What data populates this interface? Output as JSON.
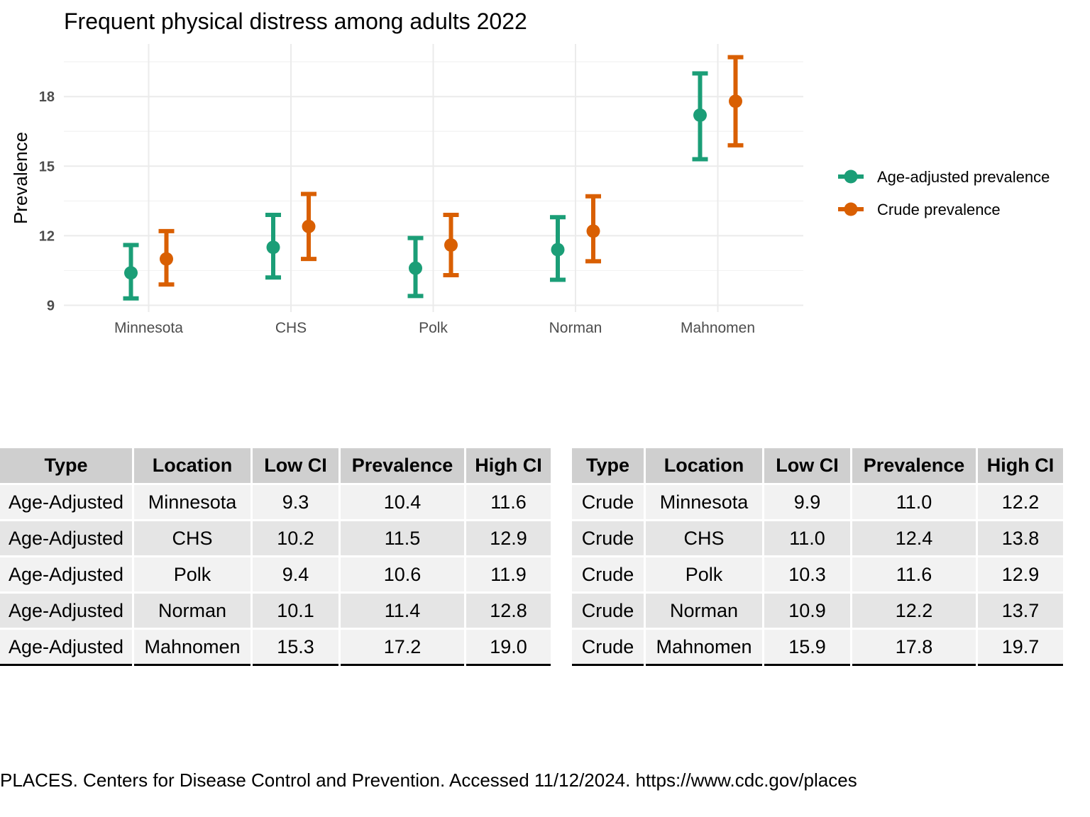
{
  "chart_data": {
    "type": "errorbar",
    "title": "Frequent physical distress among adults 2022",
    "xlabel": "",
    "ylabel": "Prevalence",
    "categories": [
      "Minnesota",
      "CHS",
      "Polk",
      "Norman",
      "Mahnomen"
    ],
    "yticks": [
      9,
      12,
      15,
      18
    ],
    "ylim": [
      9,
      20.1
    ],
    "grid": true,
    "legend_position": "right",
    "series": [
      {
        "name": "Age-adjusted prevalence",
        "color": "#1b9e77",
        "values": [
          10.4,
          11.5,
          10.6,
          11.4,
          17.2
        ],
        "low": [
          9.3,
          10.2,
          9.4,
          10.1,
          15.3
        ],
        "high": [
          11.6,
          12.9,
          11.9,
          12.8,
          19.0
        ]
      },
      {
        "name": "Crude prevalence",
        "color": "#d95f02",
        "values": [
          11.0,
          12.4,
          11.6,
          12.2,
          17.8
        ],
        "low": [
          9.9,
          11.0,
          10.3,
          10.9,
          15.9
        ],
        "high": [
          12.2,
          13.8,
          12.9,
          13.7,
          19.7
        ]
      }
    ]
  },
  "tables": {
    "headers": [
      "Type",
      "Location",
      "Low CI",
      "Prevalence",
      "High CI"
    ],
    "left": [
      [
        "Age-Adjusted",
        "Minnesota",
        "9.3",
        "10.4",
        "11.6"
      ],
      [
        "Age-Adjusted",
        "CHS",
        "10.2",
        "11.5",
        "12.9"
      ],
      [
        "Age-Adjusted",
        "Polk",
        "9.4",
        "10.6",
        "11.9"
      ],
      [
        "Age-Adjusted",
        "Norman",
        "10.1",
        "11.4",
        "12.8"
      ],
      [
        "Age-Adjusted",
        "Mahnomen",
        "15.3",
        "17.2",
        "19.0"
      ]
    ],
    "right": [
      [
        "Crude",
        "Minnesota",
        "9.9",
        "11.0",
        "12.2"
      ],
      [
        "Crude",
        "CHS",
        "11.0",
        "12.4",
        "13.8"
      ],
      [
        "Crude",
        "Polk",
        "10.3",
        "11.6",
        "12.9"
      ],
      [
        "Crude",
        "Norman",
        "10.9",
        "12.2",
        "13.7"
      ],
      [
        "Crude",
        "Mahnomen",
        "15.9",
        "17.8",
        "19.7"
      ]
    ]
  },
  "source": "PLACES. Centers for Disease Control and Prevention. Accessed 11/12/2024. https://www.cdc.gov/places"
}
